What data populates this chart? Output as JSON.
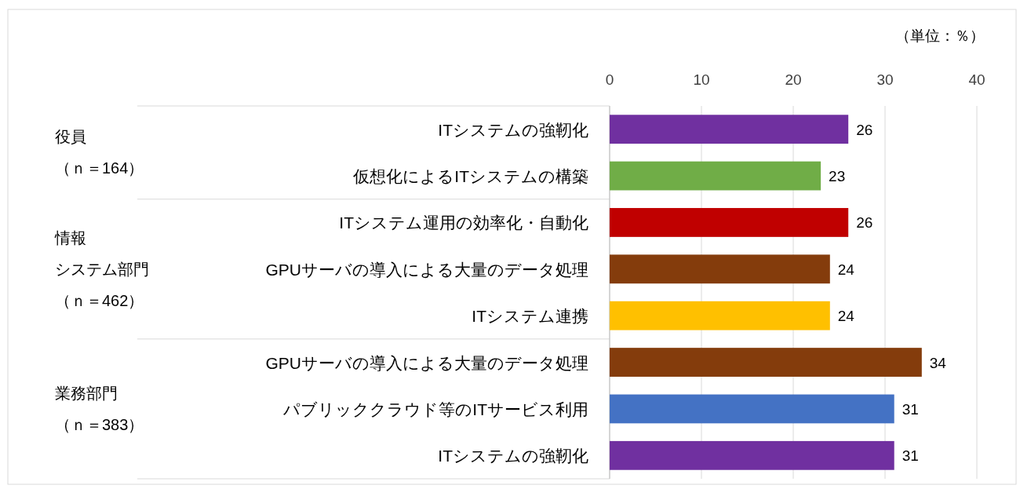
{
  "chart_data": {
    "type": "bar",
    "orientation": "horizontal",
    "categories": [
      "ITシステムの強靭化",
      "仮想化によるITシステムの構築",
      "ITシステム運用の効率化・自動化",
      "GPUサーバの導入による大量のデータ処理",
      "ITシステム連携",
      "GPUサーバの導入による大量のデータ処理",
      "パブリッククラウド等のITサービス利用",
      "ITシステムの強靭化"
    ],
    "values": [
      26,
      23,
      26,
      24,
      24,
      34,
      31,
      31
    ],
    "colors": [
      "#7030a0",
      "#70ad47",
      "#c00000",
      "#843c0c",
      "#ffc000",
      "#843c0c",
      "#4472c4",
      "#7030a0"
    ],
    "xlim": [
      0,
      40
    ],
    "xticks": [
      0,
      10,
      20,
      30,
      40
    ],
    "grid": "x",
    "data_labels": true,
    "annotations": [
      "（単位：％）",
      "役員",
      "（ｎ＝164）",
      "情報",
      "システム部門",
      "（ｎ＝462）",
      "業務部門",
      "（ｎ＝383）"
    ]
  }
}
